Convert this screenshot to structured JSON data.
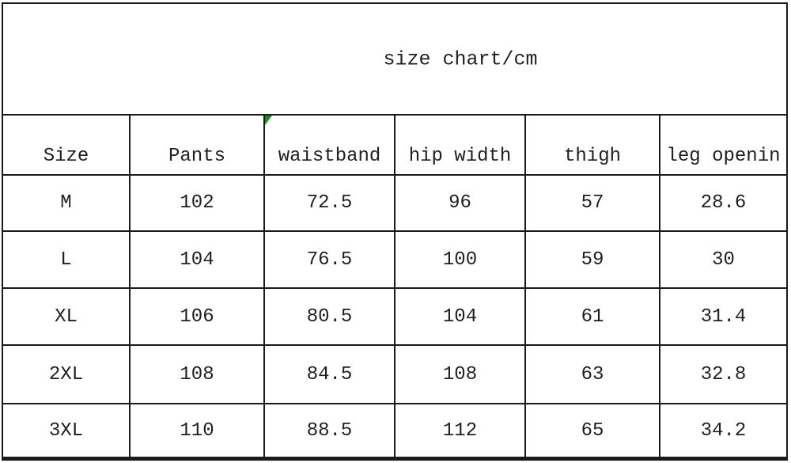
{
  "page": {
    "title": "size chart/cm"
  },
  "colors": {
    "background": "#ffffff",
    "grid_border": "#1a1a1a",
    "text": "#1f1f1f",
    "flag_green": "#1f8b24"
  },
  "icons": {
    "flag": "excel-green-corner-flag-icon"
  },
  "chart_data": {
    "type": "table",
    "title": "size chart/cm",
    "columns": [
      "Size",
      "Pants",
      "waistband",
      "hip width",
      "thigh",
      "leg openin"
    ],
    "rows": [
      [
        "M",
        "102",
        "72.5",
        "96",
        "57",
        "28.6"
      ],
      [
        "L",
        "104",
        "76.5",
        "100",
        "59",
        "30"
      ],
      [
        "XL",
        "106",
        "80.5",
        "104",
        "61",
        "31.4"
      ],
      [
        "2XL",
        "108",
        "84.5",
        "108",
        "63",
        "32.8"
      ],
      [
        "3XL",
        "110",
        "88.5",
        "112",
        "65",
        "34.2"
      ]
    ],
    "layout_hints": {
      "header_row": true,
      "grid": true,
      "units": "cm",
      "flagged_header_cell": "waistband"
    }
  }
}
